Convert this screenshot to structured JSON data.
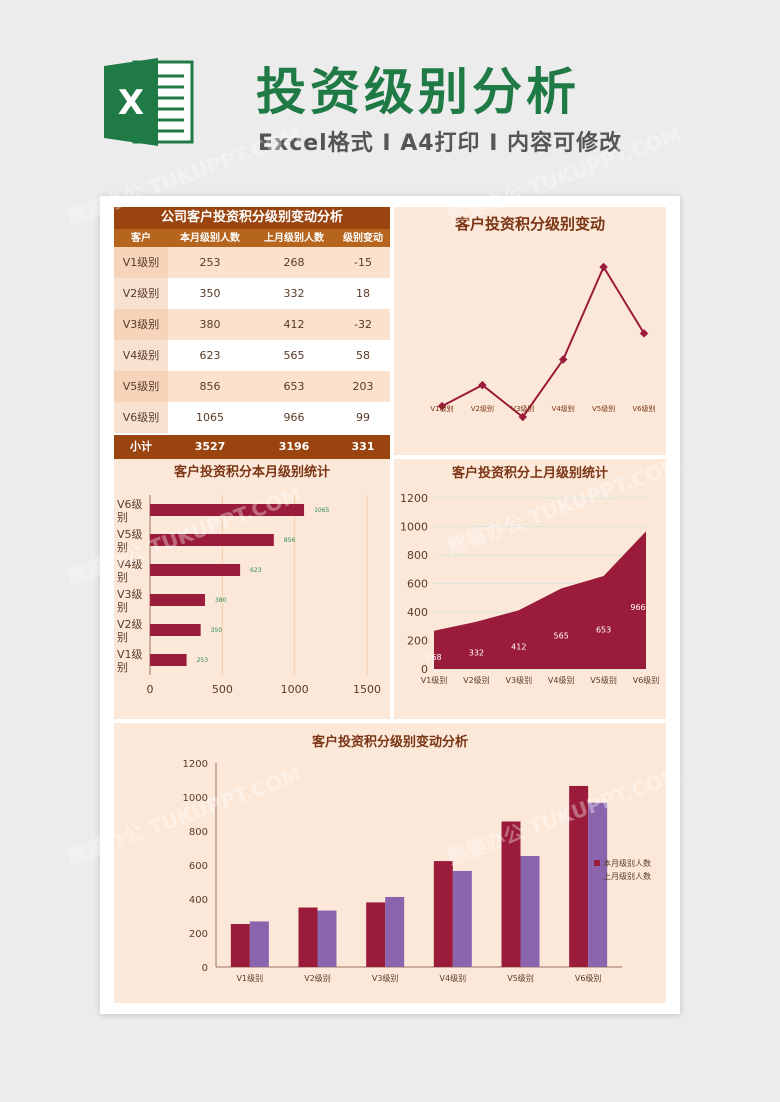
{
  "header": {
    "title": "投资级别分析",
    "subtitle": "Excel格式 I A4打印 I 内容可修改",
    "logo_letter": "X"
  },
  "watermark": "熊猫办公 TUKUPPT.COM",
  "table": {
    "title": "公司客户投资积分级别变动分析",
    "headers": [
      "客户",
      "本月级别人数",
      "上月级别人数",
      "级别变动"
    ],
    "rows": [
      [
        "V1级别",
        "253",
        "268",
        "-15"
      ],
      [
        "V2级别",
        "350",
        "332",
        "18"
      ],
      [
        "V3级别",
        "380",
        "412",
        "-32"
      ],
      [
        "V4级别",
        "623",
        "565",
        "58"
      ],
      [
        "V5级别",
        "856",
        "653",
        "203"
      ],
      [
        "V6级别",
        "1065",
        "966",
        "99"
      ]
    ],
    "total": [
      "小计",
      "3527",
      "3196",
      "331"
    ]
  },
  "colors": {
    "primary": "#9b1b3a",
    "secondary": "#8a64ad",
    "panel_bg": "#fce8d9",
    "table_header": "#9a4510",
    "title_green": "#1f7a46"
  },
  "chart_data": [
    {
      "type": "line",
      "title": "客户投资积分级别变动",
      "categories": [
        "V1级别",
        "V2级别",
        "V3级别",
        "V4级别",
        "V5级别",
        "V6级别"
      ],
      "values": [
        -15,
        18,
        -32,
        58,
        203,
        99
      ]
    },
    {
      "type": "bar",
      "orientation": "horizontal",
      "title": "客户投资积分本月级别统计",
      "categories": [
        "V1级别",
        "V2级别",
        "V3级别",
        "V4级别",
        "V5级别",
        "V6级别"
      ],
      "values": [
        253,
        350,
        380,
        623,
        856,
        1065
      ],
      "xticks": [
        "0",
        "500",
        "1000",
        "1500"
      ],
      "xlim": [
        0,
        1500
      ]
    },
    {
      "type": "area",
      "title": "客户投资积分上月级别统计",
      "categories": [
        "V1级别",
        "V2级别",
        "V3级别",
        "V4级别",
        "V5级别",
        "V6级别"
      ],
      "values": [
        268,
        332,
        412,
        565,
        653,
        966
      ],
      "data_labels": [
        "268",
        "332",
        "412",
        "565",
        "653",
        "966"
      ],
      "yticks": [
        "0",
        "200",
        "400",
        "600",
        "800",
        "1000",
        "1200"
      ],
      "ylim": [
        0,
        1200
      ]
    },
    {
      "type": "bar",
      "title": "客户投资积分级别变动分析",
      "categories": [
        "V1级别",
        "V2级别",
        "V3级别",
        "V4级别",
        "V5级别",
        "V6级别"
      ],
      "series": [
        {
          "name": "本月级别人数",
          "values": [
            253,
            350,
            380,
            623,
            856,
            1065
          ]
        },
        {
          "name": "上月级别人数",
          "values": [
            268,
            332,
            412,
            565,
            653,
            966
          ]
        }
      ],
      "yticks": [
        "0",
        "200",
        "400",
        "600",
        "800",
        "1000",
        "1200"
      ],
      "ylim": [
        0,
        1200
      ],
      "legend": "right"
    }
  ]
}
